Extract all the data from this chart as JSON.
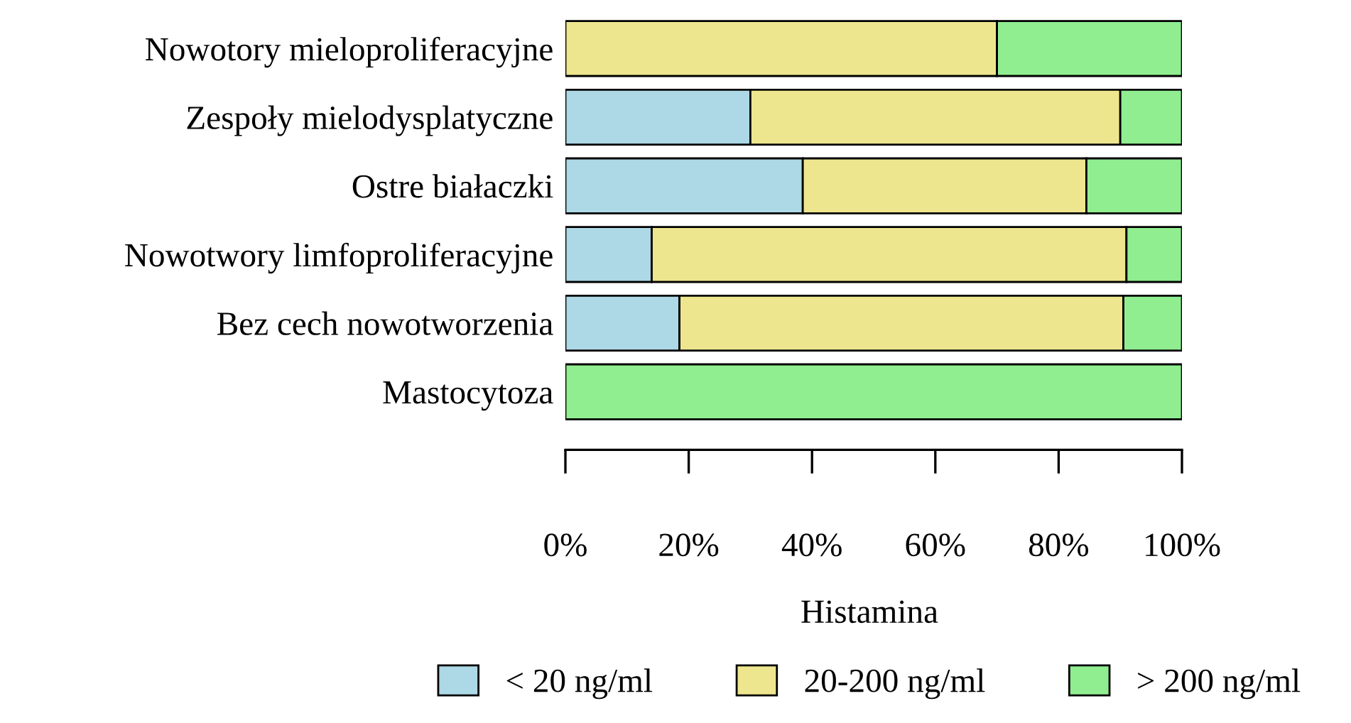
{
  "chart_data": {
    "type": "bar",
    "orientation": "horizontal",
    "stacked": true,
    "categories": [
      "Nowotory mieloproliferacyjne",
      "Zespoły mielodysplatyczne",
      "Ostre białaczki",
      "Nowotwory limfoproliferacyjne",
      "Bez cech nowotworzenia",
      "Mastocytoza"
    ],
    "series": [
      {
        "name": "< 20 ng/ml",
        "color": "#add8e6",
        "values": [
          0,
          30,
          38.5,
          14,
          18.5,
          0
        ]
      },
      {
        "name": "20-200 ng/ml",
        "color": "#eee68f",
        "values": [
          70,
          60,
          46,
          77,
          72,
          0
        ]
      },
      {
        "name": "> 200 ng/ml",
        "color": "#90ee90",
        "values": [
          30,
          10,
          15.5,
          9,
          9.5,
          100
        ]
      }
    ],
    "xlim": [
      0,
      100
    ],
    "xticks": [
      {
        "value": 0,
        "label": "0%"
      },
      {
        "value": 20,
        "label": "20%"
      },
      {
        "value": 40,
        "label": "40%"
      },
      {
        "value": 60,
        "label": "60%"
      },
      {
        "value": 80,
        "label": "80%"
      },
      {
        "value": 100,
        "label": "100%"
      }
    ],
    "legend_title": "Histamina",
    "legend": "bottom",
    "grid": false
  }
}
